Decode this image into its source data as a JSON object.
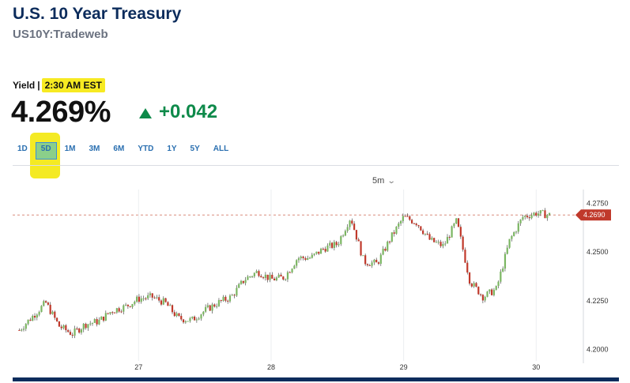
{
  "header": {
    "title": "U.S. 10 Year Treasury",
    "symbol": "US10Y:Tradeweb"
  },
  "quote": {
    "label": "Yield",
    "separator": "|",
    "time": "2:30 AM EST",
    "value": "4.269%",
    "change": "+0.042"
  },
  "ranges": [
    "1D",
    "5D",
    "1M",
    "3M",
    "6M",
    "YTD",
    "1Y",
    "5Y",
    "ALL"
  ],
  "selected_range": "5D",
  "interval": "5m",
  "colors": {
    "title": "#0c2c5c",
    "up": "#0e8a4a",
    "highlight": "#f4ea24",
    "candle_up": "#7bb662",
    "candle_down": "#c0392b",
    "current_marker": "#c0392b"
  },
  "chart_data": {
    "type": "candlestick",
    "ylim": [
      4.195,
      4.278
    ],
    "y_ticks": [
      "4.2750",
      "4.2500",
      "4.2250",
      "4.2000"
    ],
    "x_ticks": [
      "27",
      "28",
      "29",
      "30"
    ],
    "current_value": "4.2690",
    "series": [
      {
        "t": 26.1,
        "v": 4.21
      },
      {
        "t": 26.2,
        "v": 4.217
      },
      {
        "t": 26.3,
        "v": 4.224
      },
      {
        "t": 26.4,
        "v": 4.212
      },
      {
        "t": 26.5,
        "v": 4.208
      },
      {
        "t": 26.6,
        "v": 4.213
      },
      {
        "t": 26.7,
        "v": 4.2145
      },
      {
        "t": 26.8,
        "v": 4.22
      },
      {
        "t": 26.9,
        "v": 4.222
      },
      {
        "t": 27.0,
        "v": 4.226
      },
      {
        "t": 27.1,
        "v": 4.227
      },
      {
        "t": 27.2,
        "v": 4.224
      },
      {
        "t": 27.3,
        "v": 4.216
      },
      {
        "t": 27.4,
        "v": 4.215
      },
      {
        "t": 27.5,
        "v": 4.22
      },
      {
        "t": 27.6,
        "v": 4.224
      },
      {
        "t": 27.7,
        "v": 4.227
      },
      {
        "t": 27.8,
        "v": 4.236
      },
      {
        "t": 27.9,
        "v": 4.24
      },
      {
        "t": 28.0,
        "v": 4.236
      },
      {
        "t": 28.1,
        "v": 4.237
      },
      {
        "t": 28.2,
        "v": 4.247
      },
      {
        "t": 28.3,
        "v": 4.247
      },
      {
        "t": 28.4,
        "v": 4.252
      },
      {
        "t": 28.5,
        "v": 4.254
      },
      {
        "t": 28.6,
        "v": 4.268
      },
      {
        "t": 28.7,
        "v": 4.245
      },
      {
        "t": 28.8,
        "v": 4.244
      },
      {
        "t": 28.9,
        "v": 4.257
      },
      {
        "t": 29.0,
        "v": 4.268
      },
      {
        "t": 29.1,
        "v": 4.265
      },
      {
        "t": 29.2,
        "v": 4.256
      },
      {
        "t": 29.3,
        "v": 4.253
      },
      {
        "t": 29.4,
        "v": 4.266
      },
      {
        "t": 29.5,
        "v": 4.235
      },
      {
        "t": 29.6,
        "v": 4.227
      },
      {
        "t": 29.7,
        "v": 4.231
      },
      {
        "t": 29.8,
        "v": 4.256
      },
      {
        "t": 29.9,
        "v": 4.268
      },
      {
        "t": 30.0,
        "v": 4.27
      },
      {
        "t": 30.1,
        "v": 4.269
      }
    ]
  }
}
